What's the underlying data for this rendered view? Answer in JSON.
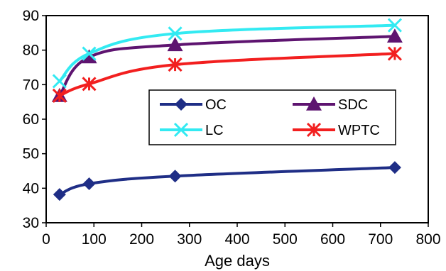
{
  "chart_data": {
    "type": "line",
    "title": "",
    "xlabel": "Age days",
    "ylabel": "",
    "xlim": [
      0,
      800
    ],
    "ylim": [
      30,
      90
    ],
    "xticks": [
      0,
      100,
      200,
      300,
      400,
      500,
      600,
      700,
      800
    ],
    "yticks": [
      30,
      40,
      50,
      60,
      70,
      80,
      90
    ],
    "grid": false,
    "legend_position": "center-right",
    "x": [
      28,
      90,
      270,
      730
    ],
    "series": [
      {
        "name": "OC",
        "values": [
          38.2,
          41.3,
          43.5,
          46.0
        ],
        "color": "#1f2e86",
        "marker": "diamond"
      },
      {
        "name": "SDC",
        "values": [
          66.8,
          78.0,
          81.5,
          84.0
        ],
        "color": "#5e1470",
        "marker": "triangle"
      },
      {
        "name": "LC",
        "values": [
          71.0,
          79.0,
          84.8,
          87.2
        ],
        "color": "#33eaf2",
        "marker": "x"
      },
      {
        "name": "WPTC",
        "values": [
          66.8,
          70.2,
          75.8,
          79.0
        ],
        "color": "#f21f1f",
        "marker": "asterisk"
      }
    ]
  }
}
